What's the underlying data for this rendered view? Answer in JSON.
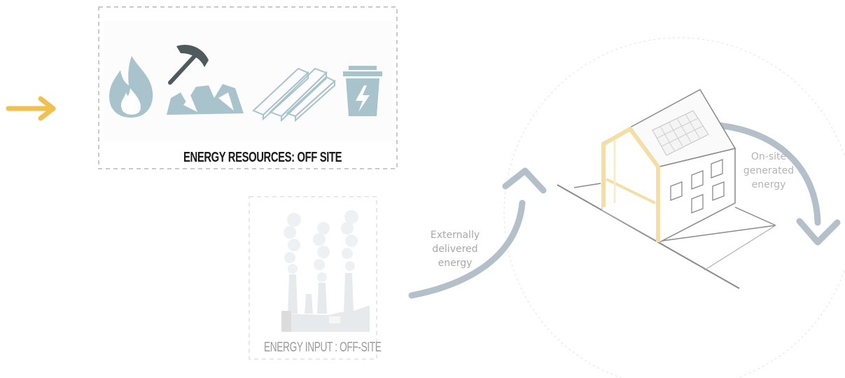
{
  "resources_box": {
    "title": "ENERGY RESOURCES: OFF SITE",
    "icons": [
      "flame-icon",
      "pickaxe-coal-icon",
      "timber-planks-icon",
      "battery-bin-icon"
    ]
  },
  "input_box": {
    "title": "ENERGY INPUT : OFF-SITE",
    "icon": "power-plant-icon"
  },
  "flows": {
    "external_label": [
      "Externally",
      "delivered",
      "energy"
    ],
    "onsite_label": [
      "On-site",
      "generated",
      "energy"
    ]
  },
  "colors": {
    "accent_arrow": "#f2c04f",
    "icon_fill": "#a9c3cc",
    "flow_arrow": "#b3bfc9",
    "house_frame": "#f3dfa6",
    "line_gray": "#8a8a8a"
  }
}
